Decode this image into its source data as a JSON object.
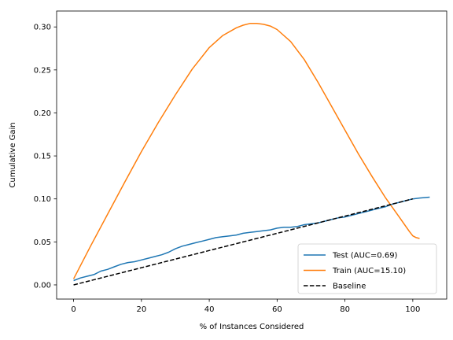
{
  "chart_data": {
    "type": "line",
    "title": "",
    "xlabel": "% of Instances Considered",
    "ylabel": "Cumulative Gain",
    "xlim": [
      -5,
      110
    ],
    "ylim": [
      -0.0165,
      0.3185
    ],
    "xticks": [
      0,
      20,
      40,
      60,
      80,
      100
    ],
    "xtick_labels": [
      "0",
      "20",
      "40",
      "60",
      "80",
      "100"
    ],
    "yticks": [
      0.0,
      0.05,
      0.1,
      0.15,
      0.2,
      0.25,
      0.3
    ],
    "ytick_labels": [
      "0.00",
      "0.05",
      "0.10",
      "0.15",
      "0.20",
      "0.25",
      "0.30"
    ],
    "grid": false,
    "legend_position": "lower-right",
    "series": [
      {
        "name": "Test (AUC=0.69)",
        "color": "#1f77b4",
        "style": "solid",
        "x": [
          0,
          2,
          4,
          6,
          8,
          10,
          12,
          14,
          16,
          18,
          20,
          22,
          24,
          26,
          28,
          30,
          32,
          34,
          36,
          38,
          40,
          42,
          44,
          46,
          48,
          50,
          52,
          54,
          56,
          58,
          60,
          62,
          64,
          66,
          68,
          70,
          72,
          74,
          76,
          78,
          80,
          82,
          84,
          86,
          88,
          90,
          92,
          94,
          96,
          98,
          100,
          102,
          105
        ],
        "y": [
          0.005,
          0.008,
          0.01,
          0.012,
          0.016,
          0.018,
          0.021,
          0.024,
          0.026,
          0.027,
          0.029,
          0.031,
          0.033,
          0.035,
          0.038,
          0.042,
          0.045,
          0.047,
          0.049,
          0.051,
          0.053,
          0.055,
          0.056,
          0.057,
          0.058,
          0.06,
          0.061,
          0.062,
          0.063,
          0.064,
          0.066,
          0.067,
          0.067,
          0.068,
          0.07,
          0.071,
          0.072,
          0.074,
          0.076,
          0.078,
          0.079,
          0.081,
          0.083,
          0.085,
          0.087,
          0.089,
          0.091,
          0.094,
          0.096,
          0.098,
          0.1,
          0.101,
          0.102
        ]
      },
      {
        "name": "Train (AUC=15.10)",
        "color": "#ff7f0e",
        "style": "solid",
        "x": [
          0,
          5,
          10,
          15,
          20,
          25,
          30,
          35,
          40,
          44,
          48,
          50,
          52,
          54,
          56,
          58,
          60,
          64,
          68,
          72,
          76,
          80,
          84,
          88,
          92,
          96,
          99,
          100,
          101,
          102
        ],
        "y": [
          0.007,
          0.045,
          0.082,
          0.119,
          0.155,
          0.189,
          0.221,
          0.251,
          0.276,
          0.29,
          0.299,
          0.302,
          0.304,
          0.304,
          0.303,
          0.301,
          0.297,
          0.283,
          0.262,
          0.236,
          0.208,
          0.18,
          0.152,
          0.126,
          0.101,
          0.079,
          0.062,
          0.057,
          0.055,
          0.054
        ]
      },
      {
        "name": "Baseline",
        "color": "#000000",
        "style": "dashed",
        "x": [
          0,
          100
        ],
        "y": [
          0.0,
          0.1
        ]
      }
    ]
  }
}
